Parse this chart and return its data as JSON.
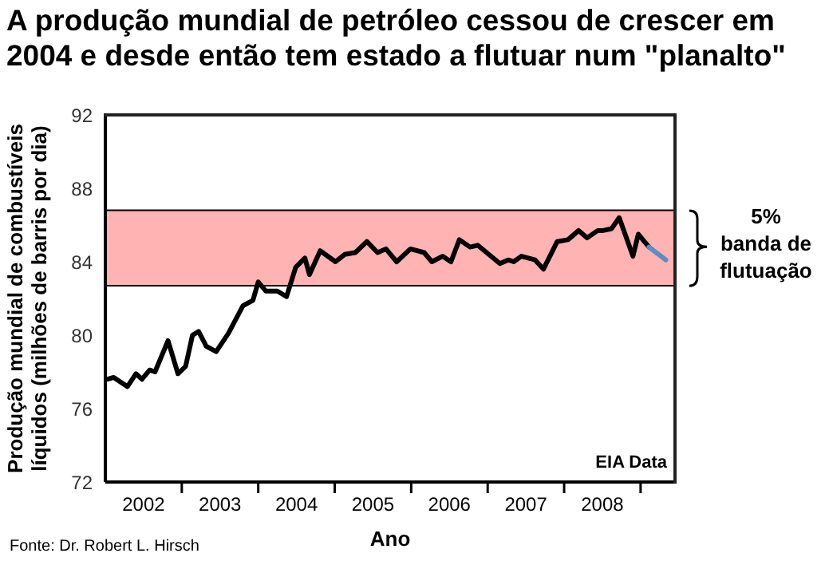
{
  "chart_data": {
    "type": "line",
    "title": "A produção mundial de petróleo cessou de crescer em 2004 e desde então tem estado a flutuar num \"planalto\"",
    "xlabel": "Ano",
    "ylabel": "Produção mundial de combustíveis líquidos (milhões de barris por dia)",
    "xlim": [
      2002,
      2009.45
    ],
    "xticks": [
      {
        "value": 2002.5,
        "label": "2002"
      },
      {
        "value": 2003,
        "label": null
      },
      {
        "value": 2003.5,
        "label": "2003"
      },
      {
        "value": 2004,
        "label": null
      },
      {
        "value": 2004.5,
        "label": "2004"
      },
      {
        "value": 2005,
        "label": null
      },
      {
        "value": 2005.5,
        "label": "2005"
      },
      {
        "value": 2006,
        "label": null
      },
      {
        "value": 2006.5,
        "label": "2006"
      },
      {
        "value": 2007,
        "label": null
      },
      {
        "value": 2007.5,
        "label": "2007"
      },
      {
        "value": 2008,
        "label": null
      },
      {
        "value": 2008.5,
        "label": "2008"
      },
      {
        "value": 2009,
        "label": null
      }
    ],
    "ylim": [
      72,
      92
    ],
    "yticks": [
      72,
      76,
      80,
      84,
      88,
      92
    ],
    "marker": "none",
    "line_style": "solid",
    "series": [
      {
        "color": "#000000",
        "x": [
          2002.03,
          2002.11,
          2002.29,
          2002.4,
          2002.48,
          2002.58,
          2002.65,
          2002.82,
          2002.95,
          2003.05,
          2003.14,
          2003.22,
          2003.32,
          2003.45,
          2003.61,
          2003.8,
          2003.93,
          2004.0,
          2004.1,
          2004.25,
          2004.37,
          2004.49,
          2004.61,
          2004.67,
          2004.81,
          2005.01,
          2005.13,
          2005.27,
          2005.42,
          2005.56,
          2005.67,
          2005.81,
          2005.99,
          2006.17,
          2006.27,
          2006.41,
          2006.52,
          2006.63,
          2006.77,
          2006.87,
          2007.16,
          2007.27,
          2007.34,
          2007.44,
          2007.62,
          2007.73,
          2007.91,
          2008.05,
          2008.19,
          2008.3,
          2008.44,
          2008.51,
          2008.62,
          2008.72,
          2008.9,
          2008.97,
          2009.11
        ],
        "values": [
          77.6,
          77.7,
          77.2,
          77.9,
          77.6,
          78.1,
          78.0,
          79.7,
          77.9,
          78.3,
          80.0,
          80.2,
          79.4,
          79.1,
          80.1,
          81.6,
          81.9,
          82.9,
          82.4,
          82.4,
          82.1,
          83.7,
          84.2,
          83.3,
          84.6,
          84.0,
          84.4,
          84.5,
          85.1,
          84.5,
          84.7,
          84.0,
          84.7,
          84.5,
          84.0,
          84.3,
          84.0,
          85.2,
          84.8,
          84.9,
          83.9,
          84.1,
          84.0,
          84.3,
          84.1,
          83.6,
          85.1,
          85.2,
          85.7,
          85.3,
          85.7,
          85.7,
          85.8,
          86.4,
          84.3,
          85.5,
          84.8
        ]
      },
      {
        "color": "#5b8cc8",
        "x": [
          2009.11,
          2009.33
        ],
        "values": [
          84.8,
          84.1
        ]
      }
    ],
    "bands": [
      {
        "axis": "y",
        "from": 82.7,
        "to": 86.8,
        "color": "#ffb3b3",
        "label": "5%\nbanda de\nflutuação"
      }
    ],
    "annotations": [
      "EIA Data",
      "Fonte: Dr. Robert L. Hirsch"
    ]
  }
}
